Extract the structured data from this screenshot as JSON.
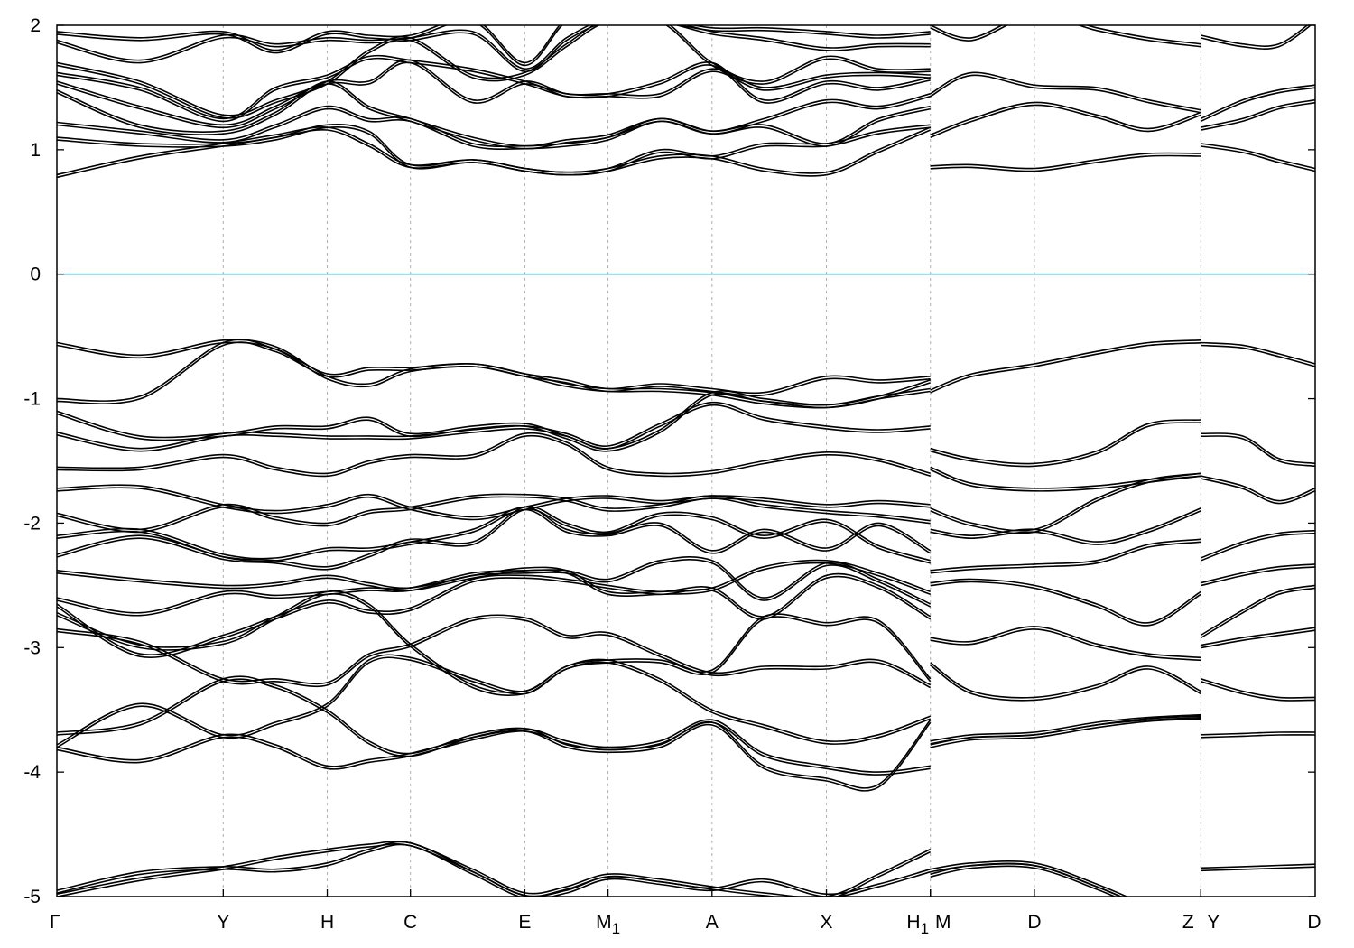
{
  "chart_data": {
    "type": "line",
    "title": "",
    "xlabel": "",
    "ylabel": "",
    "ylim": [
      -5,
      2
    ],
    "yticks": [
      -5,
      -4,
      -3,
      -2,
      -1,
      0,
      1,
      2
    ],
    "ytick_labels": [
      "-5",
      "-4",
      "-3",
      "-2",
      "-1",
      "0",
      "1",
      "2"
    ],
    "fermi_level": 0,
    "fermi_color": "#5bb1cc",
    "line_color": "#000000",
    "grid": "vertical dotted lines at high-symmetry points",
    "k_points": [
      {
        "label": "Γ",
        "sub": "",
        "x": 0
      },
      {
        "label": "Y",
        "sub": "",
        "x": 1.6
      },
      {
        "label": "H",
        "sub": "",
        "x": 2.6
      },
      {
        "label": "C",
        "sub": "",
        "x": 3.4
      },
      {
        "label": "E",
        "sub": "",
        "x": 4.5
      },
      {
        "label": "M",
        "sub": "1",
        "x": 5.3
      },
      {
        "label": "A",
        "sub": "",
        "x": 6.3
      },
      {
        "label": "X",
        "sub": "",
        "x": 7.4
      },
      {
        "label": "H",
        "sub": "1",
        "x": 8.4
      },
      {
        "label": "M",
        "sub": "",
        "x": 8.4
      },
      {
        "label": "D",
        "sub": "",
        "x": 9.4
      },
      {
        "label": "Z",
        "sub": "",
        "x": 11.0
      },
      {
        "label": "Y",
        "sub": "",
        "x": 11.0
      },
      {
        "label": "D",
        "sub": "",
        "x": 12.1
      }
    ],
    "x_max": 12.1,
    "segments": [
      {
        "x": [
          0,
          0.8,
          1.6,
          2.1,
          2.6,
          3.0,
          3.4,
          4.0,
          4.5,
          4.9,
          5.3,
          5.8,
          6.3,
          6.8,
          7.4,
          7.9,
          8.4
        ],
        "series": [
          {
            "values": [
              -4.98,
              -4.85,
              -4.76,
              -4.68,
              -4.62,
              -4.58,
              -4.57,
              -4.78,
              -4.97,
              -4.92,
              -4.82,
              -4.86,
              -4.92,
              -4.97,
              -5.0,
              -4.82,
              -4.62
            ]
          },
          {
            "values": [
              -4.95,
              -4.8,
              -4.76,
              -4.78,
              -4.73,
              -4.62,
              -4.57,
              -4.8,
              -4.99,
              -4.95,
              -4.84,
              -4.88,
              -4.93,
              -4.86,
              -4.98,
              -4.9,
              -4.78
            ]
          },
          {
            "values": [
              -3.8,
              -3.9,
              -3.7,
              -3.78,
              -3.95,
              -3.9,
              -3.85,
              -3.72,
              -3.65,
              -3.75,
              -3.8,
              -3.75,
              -3.58,
              -3.85,
              -3.95,
              -4.0,
              -3.95
            ]
          },
          {
            "values": [
              -3.68,
              -3.6,
              -3.25,
              -3.3,
              -3.5,
              -3.75,
              -3.85,
              -3.7,
              -3.65,
              -3.78,
              -3.82,
              -3.78,
              -3.6,
              -3.95,
              -4.05,
              -4.1,
              -3.58
            ]
          },
          {
            "values": [
              -3.78,
              -3.45,
              -3.7,
              -3.6,
              -3.45,
              -3.1,
              -3.08,
              -3.25,
              -3.35,
              -3.15,
              -3.1,
              -3.25,
              -3.5,
              -3.62,
              -3.75,
              -3.7,
              -3.55
            ]
          },
          {
            "values": [
              -2.85,
              -2.95,
              -3.25,
              -3.25,
              -3.28,
              -3.05,
              -2.97,
              -2.76,
              -2.76,
              -2.9,
              -2.88,
              -3.05,
              -3.2,
              -3.15,
              -3.15,
              -3.1,
              -3.3
            ]
          },
          {
            "values": [
              -2.72,
              -2.98,
              -2.95,
              -2.75,
              -2.55,
              -2.65,
              -2.97,
              -3.3,
              -3.35,
              -3.15,
              -3.1,
              -3.1,
              -3.18,
              -2.75,
              -2.8,
              -2.78,
              -3.25
            ]
          },
          {
            "values": [
              -2.65,
              -3.05,
              -2.9,
              -2.75,
              -2.62,
              -2.7,
              -2.68,
              -2.45,
              -2.42,
              -2.45,
              -2.5,
              -2.55,
              -2.52,
              -2.75,
              -2.42,
              -2.5,
              -2.75
            ]
          },
          {
            "values": [
              -2.6,
              -2.72,
              -2.55,
              -2.58,
              -2.55,
              -2.52,
              -2.52,
              -2.4,
              -2.38,
              -2.38,
              -2.45,
              -2.3,
              -2.3,
              -2.6,
              -2.32,
              -2.45,
              -2.65
            ]
          },
          {
            "values": [
              -2.38,
              -2.45,
              -2.5,
              -2.48,
              -2.42,
              -2.48,
              -2.52,
              -2.42,
              -2.36,
              -2.38,
              -2.55,
              -2.55,
              -2.52,
              -2.35,
              -2.3,
              -2.4,
              -2.55
            ]
          },
          {
            "values": [
              -2.25,
              -2.1,
              -2.27,
              -2.3,
              -2.35,
              -2.25,
              -2.13,
              -2.15,
              -1.87,
              -2.0,
              -2.07,
              -1.92,
              -1.95,
              -2.1,
              -1.97,
              -2.18,
              -2.3
            ]
          },
          {
            "values": [
              -2.1,
              -2.05,
              -2.25,
              -2.28,
              -2.2,
              -2.2,
              -2.15,
              -2.05,
              -1.87,
              -2.05,
              -2.08,
              -2.0,
              -2.22,
              -2.05,
              -2.2,
              -2.0,
              -2.22
            ]
          },
          {
            "values": [
              -1.92,
              -2.05,
              -1.85,
              -1.95,
              -2.0,
              -1.9,
              -1.87,
              -1.78,
              -1.77,
              -1.8,
              -1.88,
              -1.85,
              -1.78,
              -1.85,
              -1.9,
              -1.93,
              -1.98
            ]
          },
          {
            "values": [
              -1.72,
              -1.7,
              -1.85,
              -1.9,
              -1.85,
              -1.77,
              -1.87,
              -1.95,
              -1.87,
              -1.8,
              -1.78,
              -1.82,
              -1.78,
              -1.8,
              -1.85,
              -1.82,
              -1.85
            ]
          },
          {
            "values": [
              -1.55,
              -1.55,
              -1.45,
              -1.55,
              -1.6,
              -1.5,
              -1.45,
              -1.45,
              -1.28,
              -1.35,
              -1.55,
              -1.6,
              -1.58,
              -1.5,
              -1.43,
              -1.48,
              -1.6
            ]
          },
          {
            "values": [
              -1.27,
              -1.4,
              -1.28,
              -1.28,
              -1.3,
              -1.3,
              -1.3,
              -1.25,
              -1.22,
              -1.28,
              -1.38,
              -1.2,
              -1.03,
              -1.15,
              -1.22,
              -1.25,
              -1.22
            ]
          },
          {
            "values": [
              -1.1,
              -1.3,
              -1.28,
              -1.22,
              -1.22,
              -1.15,
              -1.28,
              -1.22,
              -1.2,
              -1.3,
              -1.4,
              -1.25,
              -0.95,
              -1.0,
              -1.05,
              -0.98,
              -0.85
            ]
          },
          {
            "values": [
              -1.0,
              -0.98,
              -0.55,
              -0.6,
              -0.8,
              -0.75,
              -0.75,
              -0.72,
              -0.8,
              -0.85,
              -0.92,
              -0.88,
              -0.92,
              -0.95,
              -0.82,
              -0.85,
              -0.82
            ]
          },
          {
            "values": [
              -0.55,
              -0.65,
              -0.53,
              -0.58,
              -0.82,
              -0.88,
              -0.76,
              -0.72,
              -0.8,
              -0.88,
              -0.92,
              -0.92,
              -0.95,
              -1.02,
              -1.05,
              -0.98,
              -0.92
            ]
          },
          {
            "values": [
              0.8,
              0.95,
              1.05,
              1.12,
              1.18,
              1.05,
              0.88,
              0.92,
              0.85,
              0.82,
              0.85,
              0.95,
              0.95,
              0.85,
              0.82,
              1.0,
              1.18
            ]
          },
          {
            "values": [
              1.1,
              1.05,
              1.05,
              1.1,
              1.2,
              1.15,
              0.88,
              0.92,
              0.85,
              0.82,
              0.85,
              1.0,
              0.95,
              1.05,
              1.05,
              1.15,
              1.2
            ]
          },
          {
            "values": [
              1.22,
              1.15,
              1.08,
              1.2,
              1.35,
              1.25,
              1.25,
              1.05,
              1.03,
              1.05,
              1.1,
              1.25,
              1.15,
              1.2,
              1.05,
              1.25,
              1.35
            ]
          },
          {
            "values": [
              1.48,
              1.2,
              1.15,
              1.3,
              1.55,
              1.35,
              1.25,
              1.1,
              1.03,
              1.08,
              1.12,
              1.25,
              1.15,
              1.25,
              1.4,
              1.35,
              1.45
            ]
          },
          {
            "values": [
              1.55,
              1.35,
              1.2,
              1.35,
              1.55,
              1.55,
              1.72,
              1.4,
              1.55,
              1.45,
              1.45,
              1.55,
              1.7,
              1.4,
              1.55,
              1.5,
              1.58
            ]
          },
          {
            "values": [
              1.62,
              1.5,
              1.25,
              1.5,
              1.6,
              1.75,
              1.72,
              1.65,
              1.55,
              1.45,
              1.45,
              1.45,
              1.65,
              1.5,
              1.6,
              1.62,
              1.6
            ]
          },
          {
            "values": [
              1.7,
              1.55,
              1.28,
              1.4,
              1.55,
              1.8,
              1.9,
              1.6,
              1.62,
              1.85,
              2.05,
              2.05,
              1.7,
              1.55,
              1.75,
              1.65,
              1.65
            ]
          },
          {
            "values": [
              1.88,
              1.72,
              1.92,
              1.85,
              1.9,
              1.88,
              1.9,
              1.95,
              1.65,
              1.9,
              2.05,
              2.05,
              1.95,
              1.9,
              1.82,
              1.85,
              1.85
            ]
          },
          {
            "values": [
              1.95,
              1.9,
              1.95,
              1.8,
              1.95,
              1.92,
              1.92,
              2.05,
              1.7,
              2.05,
              2.1,
              2.05,
              1.98,
              1.98,
              1.95,
              1.92,
              1.95
            ]
          }
        ]
      },
      {
        "x": [
          8.4,
          8.8,
          9.4,
          10.0,
          10.5,
          11.0
        ],
        "series": [
          {
            "values": [
              -4.82,
              -4.75,
              -4.75,
              -4.92,
              -5.1,
              -5.3
            ]
          },
          {
            "values": [
              -4.78,
              -4.73,
              -4.73,
              -4.9,
              -5.08,
              -5.28
            ]
          },
          {
            "values": [
              -3.78,
              -3.72,
              -3.7,
              -3.62,
              -3.57,
              -3.55
            ]
          },
          {
            "values": [
              -3.75,
              -3.7,
              -3.68,
              -3.6,
              -3.56,
              -3.54
            ]
          },
          {
            "values": [
              -3.12,
              -3.35,
              -3.4,
              -3.3,
              -3.15,
              -3.35
            ]
          },
          {
            "values": [
              -2.92,
              -2.95,
              -2.83,
              -2.97,
              -3.05,
              -3.08
            ]
          },
          {
            "values": [
              -2.48,
              -2.45,
              -2.5,
              -2.65,
              -2.8,
              -2.55
            ]
          },
          {
            "values": [
              -2.38,
              -2.35,
              -2.33,
              -2.3,
              -2.17,
              -2.13
            ]
          },
          {
            "values": [
              -2.05,
              -2.1,
              -2.05,
              -2.15,
              -2.05,
              -1.88
            ]
          },
          {
            "values": [
              -1.88,
              -2.0,
              -2.05,
              -1.8,
              -1.65,
              -1.6
            ]
          },
          {
            "values": [
              -1.55,
              -1.68,
              -1.72,
              -1.7,
              -1.65,
              -1.6
            ]
          },
          {
            "values": [
              -1.4,
              -1.48,
              -1.52,
              -1.42,
              -1.2,
              -1.17
            ]
          },
          {
            "values": [
              -0.93,
              -0.8,
              -0.72,
              -0.62,
              -0.55,
              -0.53
            ]
          },
          {
            "values": [
              0.87,
              0.88,
              0.85,
              0.92,
              0.97,
              0.97
            ]
          },
          {
            "values": [
              1.12,
              1.25,
              1.38,
              1.28,
              1.17,
              1.3
            ]
          },
          {
            "values": [
              1.45,
              1.62,
              1.52,
              1.5,
              1.4,
              1.32
            ]
          },
          {
            "values": [
              2.0,
              1.9,
              2.1,
              1.98,
              1.9,
              1.85
            ]
          }
        ]
      },
      {
        "x": [
          11.0,
          11.4,
          11.75,
          12.1
        ],
        "series": [
          {
            "values": [
              -4.77,
              -4.76,
              -4.75,
              -4.74
            ]
          },
          {
            "values": [
              -3.7,
              -3.69,
              -3.68,
              -3.68
            ]
          },
          {
            "values": [
              -3.25,
              -3.35,
              -3.4,
              -3.4
            ]
          },
          {
            "values": [
              -2.9,
              -2.7,
              -2.55,
              -2.5
            ]
          },
          {
            "values": [
              -2.98,
              -2.92,
              -2.88,
              -2.84
            ]
          },
          {
            "values": [
              -2.48,
              -2.4,
              -2.35,
              -2.33
            ]
          },
          {
            "values": [
              -2.28,
              -2.15,
              -2.08,
              -2.06
            ]
          },
          {
            "values": [
              -1.62,
              -1.7,
              -1.82,
              -1.72
            ]
          },
          {
            "values": [
              -1.28,
              -1.3,
              -1.48,
              -1.52
            ]
          },
          {
            "values": [
              -0.55,
              -0.57,
              -0.64,
              -0.72
            ]
          },
          {
            "values": [
              1.05,
              1.0,
              0.92,
              0.85
            ]
          },
          {
            "values": [
              1.18,
              1.25,
              1.35,
              1.4
            ]
          },
          {
            "values": [
              1.25,
              1.4,
              1.48,
              1.52
            ]
          },
          {
            "values": [
              1.92,
              1.85,
              1.85,
              2.05
            ]
          }
        ]
      }
    ]
  }
}
